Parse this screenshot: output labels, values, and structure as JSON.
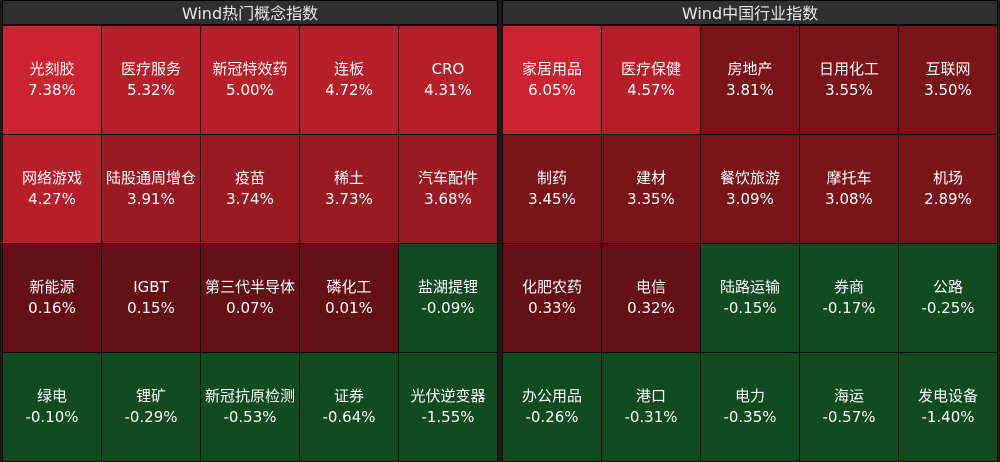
{
  "panels": [
    {
      "title": "Wind热门概念指数",
      "cells": [
        {
          "name": "光刻胶",
          "value": "7.38%",
          "heat": "r5"
        },
        {
          "name": "医疗服务",
          "value": "5.32%",
          "heat": "r4"
        },
        {
          "name": "新冠特效药",
          "value": "5.00%",
          "heat": "r4"
        },
        {
          "name": "连板",
          "value": "4.72%",
          "heat": "r4"
        },
        {
          "name": "CRO",
          "value": "4.31%",
          "heat": "r4"
        },
        {
          "name": "网络游戏",
          "value": "4.27%",
          "heat": "r4"
        },
        {
          "name": "陆股通周增仓",
          "value": "3.91%",
          "heat": "r3"
        },
        {
          "name": "疫苗",
          "value": "3.74%",
          "heat": "r3"
        },
        {
          "name": "稀土",
          "value": "3.73%",
          "heat": "r3"
        },
        {
          "name": "汽车配件",
          "value": "3.68%",
          "heat": "r3"
        },
        {
          "name": "新能源",
          "value": "0.16%",
          "heat": "r1"
        },
        {
          "name": "IGBT",
          "value": "0.15%",
          "heat": "r1"
        },
        {
          "name": "第三代半导体",
          "value": "0.07%",
          "heat": "r1"
        },
        {
          "name": "磷化工",
          "value": "0.01%",
          "heat": "r1"
        },
        {
          "name": "盐湖提锂",
          "value": "-0.09%",
          "heat": "g1"
        },
        {
          "name": "绿电",
          "value": "-0.10%",
          "heat": "g1"
        },
        {
          "name": "锂矿",
          "value": "-0.29%",
          "heat": "g1"
        },
        {
          "name": "新冠抗原检测",
          "value": "-0.53%",
          "heat": "g1"
        },
        {
          "name": "证券",
          "value": "-0.64%",
          "heat": "g1"
        },
        {
          "name": "光伏逆变器",
          "value": "-1.55%",
          "heat": "g1"
        }
      ]
    },
    {
      "title": "Wind中国行业指数",
      "cells": [
        {
          "name": "家居用品",
          "value": "6.05%",
          "heat": "r5"
        },
        {
          "name": "医疗保健",
          "value": "4.57%",
          "heat": "r4"
        },
        {
          "name": "房地产",
          "value": "3.81%",
          "heat": "r2"
        },
        {
          "name": "日用化工",
          "value": "3.55%",
          "heat": "r2"
        },
        {
          "name": "互联网",
          "value": "3.50%",
          "heat": "r2"
        },
        {
          "name": "制药",
          "value": "3.45%",
          "heat": "r2"
        },
        {
          "name": "建材",
          "value": "3.35%",
          "heat": "r2"
        },
        {
          "name": "餐饮旅游",
          "value": "3.09%",
          "heat": "r2"
        },
        {
          "name": "摩托车",
          "value": "3.08%",
          "heat": "r2"
        },
        {
          "name": "机场",
          "value": "2.89%",
          "heat": "r2"
        },
        {
          "name": "化肥农药",
          "value": "0.33%",
          "heat": "r1"
        },
        {
          "name": "电信",
          "value": "0.32%",
          "heat": "r1"
        },
        {
          "name": "陆路运输",
          "value": "-0.15%",
          "heat": "g1"
        },
        {
          "name": "券商",
          "value": "-0.17%",
          "heat": "g1"
        },
        {
          "name": "公路",
          "value": "-0.25%",
          "heat": "g1"
        },
        {
          "name": "办公用品",
          "value": "-0.26%",
          "heat": "g1"
        },
        {
          "name": "港口",
          "value": "-0.31%",
          "heat": "g1"
        },
        {
          "name": "电力",
          "value": "-0.35%",
          "heat": "g1"
        },
        {
          "name": "海运",
          "value": "-0.57%",
          "heat": "g1"
        },
        {
          "name": "发电设备",
          "value": "-1.40%",
          "heat": "g1"
        }
      ]
    }
  ]
}
